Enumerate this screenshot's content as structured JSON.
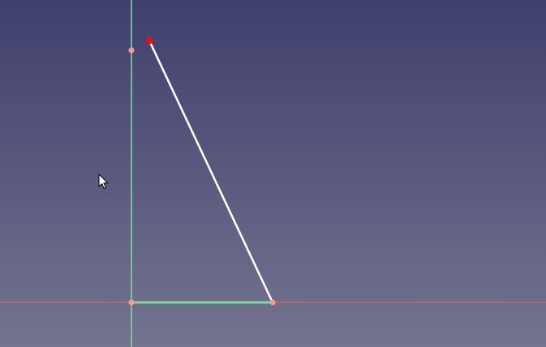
{
  "viewport": {
    "background_top_color": "#3f3f6d",
    "background_bottom_color": "#74748f"
  },
  "axes": {
    "horizontal_axis_color": "#cd6a62",
    "vertical_axis_color": "#7fd7a2"
  },
  "sketch": {
    "constrained_edge_color": "#7fd7a2",
    "unconstrained_edge_color": "#ffffff",
    "point_color": "#f79a87",
    "selected_point_color": "#ee0d09"
  },
  "cursor": {
    "icon": "arrow-pointer-icon"
  }
}
